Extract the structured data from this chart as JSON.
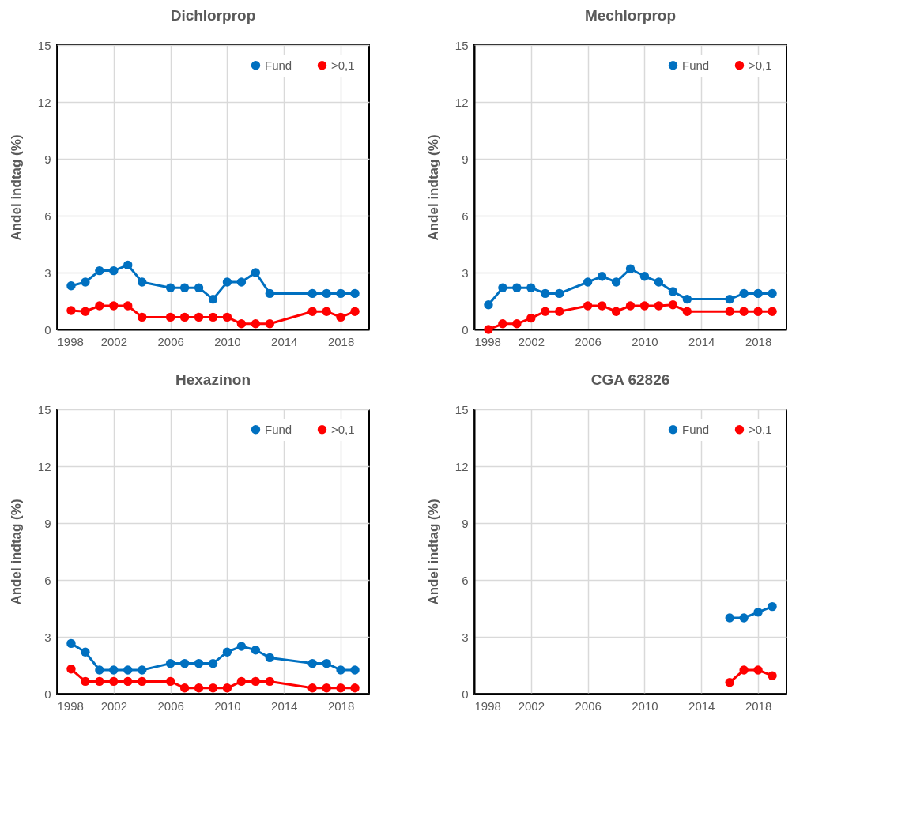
{
  "chart_data": [
    {
      "type": "line",
      "title": "Dichlorprop",
      "ylabel": "Andel indtag (%)",
      "xlim": [
        1998,
        2020
      ],
      "xticks": [
        1998,
        2002,
        2006,
        2010,
        2014,
        2018
      ],
      "ylim": [
        0,
        15
      ],
      "yticks": [
        0,
        3,
        6,
        9,
        12,
        15
      ],
      "grid": true,
      "legend": "top right",
      "marker": "circle",
      "series": [
        {
          "name": "Fund",
          "color": "#0070c0",
          "x": [
            1999,
            2000,
            2001,
            2002,
            2003,
            2004,
            2006,
            2007,
            2008,
            2009,
            2010,
            2011,
            2012,
            2013,
            2016,
            2017,
            2018,
            2019
          ],
          "values": [
            2.3,
            2.5,
            3.1,
            3.1,
            3.4,
            2.5,
            2.2,
            2.2,
            2.2,
            1.6,
            2.5,
            2.5,
            3.0,
            1.9,
            1.9,
            1.9,
            1.9,
            1.9
          ]
        },
        {
          "name": ">0,1",
          "color": "#ff0000",
          "x": [
            1999,
            2000,
            2001,
            2002,
            2003,
            2004,
            2006,
            2007,
            2008,
            2009,
            2010,
            2011,
            2012,
            2013,
            2016,
            2017,
            2018,
            2019
          ],
          "values": [
            1.0,
            0.95,
            1.25,
            1.25,
            1.25,
            0.65,
            0.65,
            0.65,
            0.65,
            0.65,
            0.65,
            0.3,
            0.3,
            0.3,
            0.95,
            0.95,
            0.65,
            0.95
          ]
        }
      ]
    },
    {
      "type": "line",
      "title": "Mechlorprop",
      "ylabel": "Andel indtag (%)",
      "xlim": [
        1998,
        2020
      ],
      "xticks": [
        1998,
        2002,
        2006,
        2010,
        2014,
        2018
      ],
      "ylim": [
        0,
        15
      ],
      "yticks": [
        0,
        3,
        6,
        9,
        12,
        15
      ],
      "grid": true,
      "legend": "top right",
      "marker": "circle",
      "series": [
        {
          "name": "Fund",
          "color": "#0070c0",
          "x": [
            1999,
            2000,
            2001,
            2002,
            2003,
            2004,
            2006,
            2007,
            2008,
            2009,
            2010,
            2011,
            2012,
            2013,
            2016,
            2017,
            2018,
            2019
          ],
          "values": [
            1.3,
            2.2,
            2.2,
            2.2,
            1.9,
            1.9,
            2.5,
            2.8,
            2.5,
            3.2,
            2.8,
            2.5,
            2.0,
            1.6,
            1.6,
            1.9,
            1.9,
            1.9
          ]
        },
        {
          "name": ">0,1",
          "color": "#ff0000",
          "x": [
            1999,
            2000,
            2001,
            2002,
            2003,
            2004,
            2006,
            2007,
            2008,
            2009,
            2010,
            2011,
            2012,
            2013,
            2016,
            2017,
            2018,
            2019
          ],
          "values": [
            0,
            0.3,
            0.3,
            0.6,
            0.95,
            0.95,
            1.25,
            1.25,
            0.95,
            1.25,
            1.25,
            1.25,
            1.3,
            0.95,
            0.95,
            0.95,
            0.95,
            0.95
          ]
        }
      ]
    },
    {
      "type": "line",
      "title": "Hexazinon",
      "ylabel": "Andel indtag (%)",
      "xlim": [
        1998,
        2020
      ],
      "xticks": [
        1998,
        2002,
        2006,
        2010,
        2014,
        2018
      ],
      "ylim": [
        0,
        15
      ],
      "yticks": [
        0,
        3,
        6,
        9,
        12,
        15
      ],
      "grid": true,
      "legend": "top right",
      "marker": "circle",
      "series": [
        {
          "name": "Fund",
          "color": "#0070c0",
          "x": [
            1999,
            2000,
            2001,
            2002,
            2003,
            2004,
            2006,
            2007,
            2008,
            2009,
            2010,
            2011,
            2012,
            2013,
            2016,
            2017,
            2018,
            2019
          ],
          "values": [
            2.65,
            2.2,
            1.25,
            1.25,
            1.25,
            1.25,
            1.6,
            1.6,
            1.6,
            1.6,
            2.2,
            2.5,
            2.3,
            1.9,
            1.6,
            1.6,
            1.25,
            1.25
          ]
        },
        {
          "name": ">0,1",
          "color": "#ff0000",
          "x": [
            1999,
            2000,
            2001,
            2002,
            2003,
            2004,
            2006,
            2007,
            2008,
            2009,
            2010,
            2011,
            2012,
            2013,
            2016,
            2017,
            2018,
            2019
          ],
          "values": [
            1.3,
            0.65,
            0.65,
            0.65,
            0.65,
            0.65,
            0.65,
            0.3,
            0.3,
            0.3,
            0.3,
            0.65,
            0.65,
            0.65,
            0.3,
            0.3,
            0.3,
            0.3
          ]
        }
      ]
    },
    {
      "type": "line",
      "title": "CGA 62826",
      "ylabel": "Andel indtag (%)",
      "xlim": [
        1998,
        2020
      ],
      "xticks": [
        1998,
        2002,
        2006,
        2010,
        2014,
        2018
      ],
      "ylim": [
        0,
        15
      ],
      "yticks": [
        0,
        3,
        6,
        9,
        12,
        15
      ],
      "grid": true,
      "legend": "top right",
      "marker": "circle",
      "series": [
        {
          "name": "Fund",
          "color": "#0070c0",
          "x": [
            2016,
            2017,
            2018,
            2019
          ],
          "values": [
            4.0,
            4.0,
            4.3,
            4.6
          ]
        },
        {
          "name": ">0,1",
          "color": "#ff0000",
          "x": [
            2016,
            2017,
            2018,
            2019
          ],
          "values": [
            0.6,
            1.25,
            1.25,
            0.95
          ]
        }
      ]
    }
  ]
}
